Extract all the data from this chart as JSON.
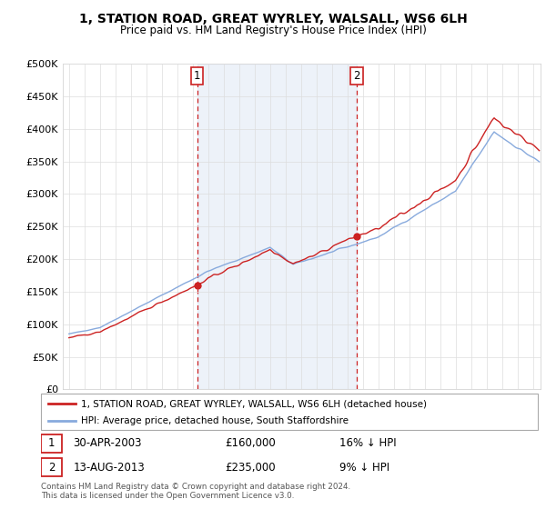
{
  "title": "1, STATION ROAD, GREAT WYRLEY, WALSALL, WS6 6LH",
  "subtitle": "Price paid vs. HM Land Registry's House Price Index (HPI)",
  "legend_house": "1, STATION ROAD, GREAT WYRLEY, WALSALL, WS6 6LH (detached house)",
  "legend_hpi": "HPI: Average price, detached house, South Staffordshire",
  "footnote": "Contains HM Land Registry data © Crown copyright and database right 2024.\nThis data is licensed under the Open Government Licence v3.0.",
  "sale1_label": "1",
  "sale1_date": "30-APR-2003",
  "sale1_price": "£160,000",
  "sale1_pct": "16% ↓ HPI",
  "sale1_year": 2003.29,
  "sale1_price_val": 160000,
  "sale2_label": "2",
  "sale2_date": "13-AUG-2013",
  "sale2_price": "£235,000",
  "sale2_pct": "9% ↓ HPI",
  "sale2_year": 2013.62,
  "sale2_price_val": 235000,
  "house_color": "#cc2222",
  "hpi_color": "#88aadd",
  "fill_color": "#ddeeff",
  "vline_color": "#cc2222",
  "grid_color": "#dddddd",
  "ylim_min": 0,
  "ylim_max": 500000,
  "xlim_min": 1994.6,
  "xlim_max": 2025.5
}
